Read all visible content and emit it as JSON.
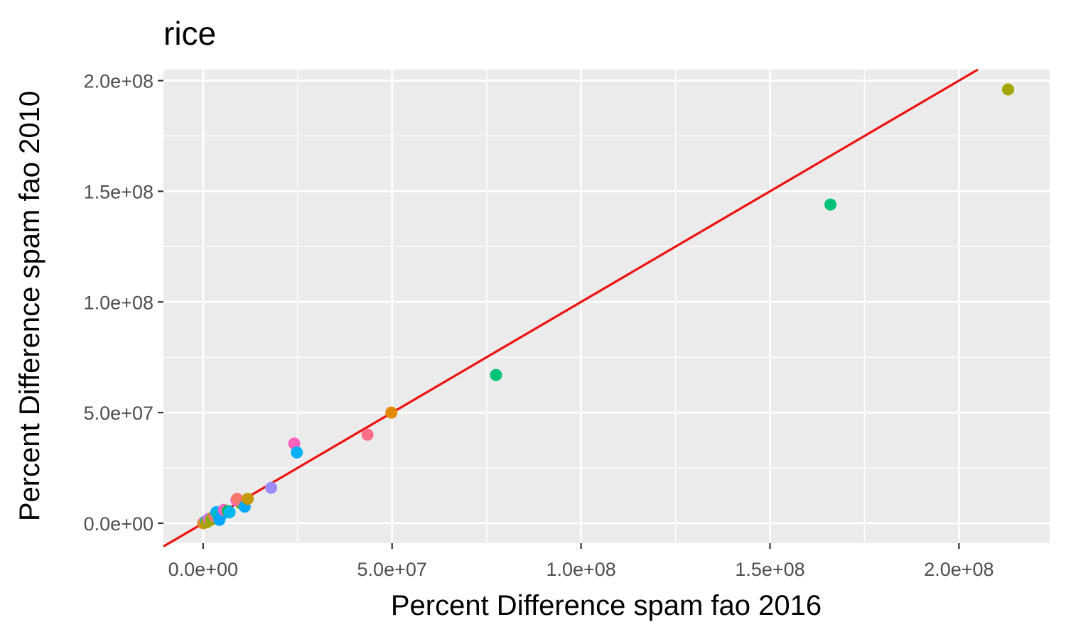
{
  "chart_data": {
    "type": "scatter",
    "title": "rice",
    "xlabel": "Percent Difference spam fao 2016",
    "ylabel": "Percent Difference spam fao 2010",
    "xlim": [
      -10500000,
      224000000
    ],
    "ylim": [
      -9000000,
      205000000
    ],
    "x_ticks": [
      0,
      50000000,
      100000000,
      150000000,
      200000000
    ],
    "x_tick_labels": [
      "0.0e+00",
      "5.0e+07",
      "1.0e+08",
      "1.5e+08",
      "2.0e+08"
    ],
    "y_ticks": [
      0,
      50000000,
      100000000,
      150000000,
      200000000
    ],
    "y_tick_labels": [
      "0.0e+00",
      "5.0e+07",
      "1.0e+08",
      "1.5e+08",
      "2.0e+08"
    ],
    "grid": true,
    "legend": "none",
    "reference_line": {
      "slope": 1,
      "intercept": 0,
      "color": "#ee1111"
    },
    "colors": {
      "panel_background": "#ebebeb",
      "grid": "#ffffff",
      "tick_text": "#4d4d4d"
    },
    "points": [
      {
        "x": 213000000,
        "y": 196000000,
        "color": "#a3a500"
      },
      {
        "x": 166000000,
        "y": 144000000,
        "color": "#00c17a"
      },
      {
        "x": 77500000,
        "y": 67000000,
        "color": "#00c17a"
      },
      {
        "x": 49800000,
        "y": 50000000,
        "color": "#e38900"
      },
      {
        "x": 43500000,
        "y": 40000000,
        "color": "#fd6e87"
      },
      {
        "x": 24800000,
        "y": 32000000,
        "color": "#00b0f6"
      },
      {
        "x": 24100000,
        "y": 36000000,
        "color": "#ff62bc"
      },
      {
        "x": 18000000,
        "y": 16000000,
        "color": "#9c8dff"
      },
      {
        "x": 11800000,
        "y": 11000000,
        "color": "#c49a00"
      },
      {
        "x": 11000000,
        "y": 7500000,
        "color": "#00a9ff"
      },
      {
        "x": 9000000,
        "y": 11000000,
        "color": "#f8766d"
      },
      {
        "x": 8800000,
        "y": 10500000,
        "color": "#ef67eb"
      },
      {
        "x": 10000000,
        "y": 9000000,
        "color": "#53b400"
      },
      {
        "x": 7000000,
        "y": 5000000,
        "color": "#00b6eb"
      },
      {
        "x": 6500000,
        "y": 5500000,
        "color": "#00bc56"
      },
      {
        "x": 5500000,
        "y": 6000000,
        "color": "#ff62bc"
      },
      {
        "x": 5000000,
        "y": 4000000,
        "color": "#06a4ff"
      },
      {
        "x": 4300000,
        "y": 1500000,
        "color": "#00a9ff"
      },
      {
        "x": 4000000,
        "y": 3500000,
        "color": "#00c0b8"
      },
      {
        "x": 3500000,
        "y": 5000000,
        "color": "#00b0f6"
      },
      {
        "x": 3000000,
        "y": 3000000,
        "color": "#f8766d"
      },
      {
        "x": 2500000,
        "y": 2500000,
        "color": "#7cae00"
      },
      {
        "x": 2000000,
        "y": 1500000,
        "color": "#a3a500"
      },
      {
        "x": 1500000,
        "y": 2000000,
        "color": "#e76bf3"
      },
      {
        "x": 1000000,
        "y": 500000,
        "color": "#a3a500"
      },
      {
        "x": 800000,
        "y": 1000000,
        "color": "#00bfc4"
      },
      {
        "x": 500000,
        "y": 300000,
        "color": "#d89000"
      },
      {
        "x": 300000,
        "y": 600000,
        "color": "#fd6e87"
      },
      {
        "x": 100000,
        "y": 100000,
        "color": "#c49a00"
      },
      {
        "x": 0,
        "y": 0,
        "color": "#f8766d"
      }
    ]
  }
}
